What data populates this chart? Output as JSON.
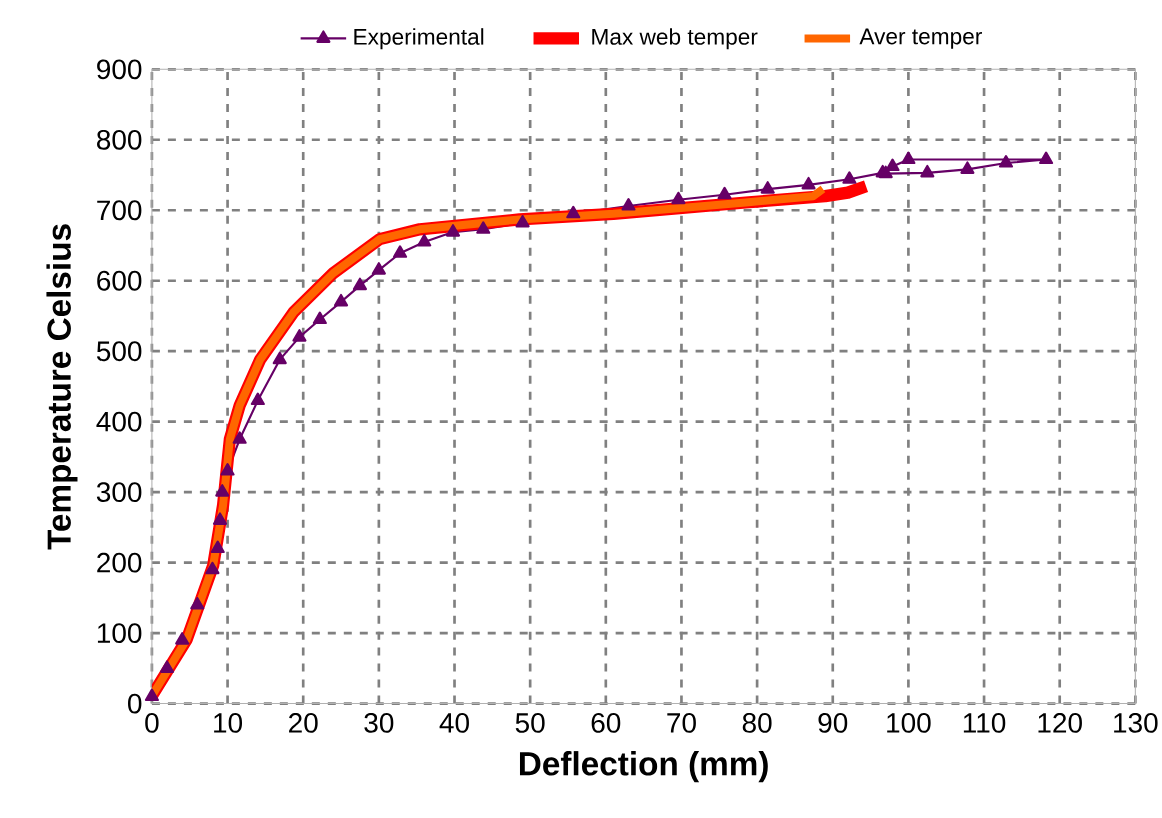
{
  "chart_data": {
    "type": "line",
    "xlabel": "Deflection (mm)",
    "ylabel": "Temperature Celsius",
    "xlim": [
      0,
      130
    ],
    "xticks": [
      0,
      10,
      20,
      30,
      40,
      50,
      60,
      70,
      80,
      90,
      100,
      110,
      120,
      130
    ],
    "ylim": [
      0,
      900
    ],
    "yticks": [
      0,
      100,
      200,
      300,
      400,
      500,
      600,
      700,
      800,
      900
    ],
    "grid": true,
    "legend": "top",
    "series": [
      {
        "name": "Experimental",
        "color": "#660066",
        "marker": "triangle",
        "x": [
          0,
          2,
          4,
          6,
          8,
          8.7,
          9,
          9.3,
          10,
          11.6,
          14,
          16.9,
          19.5,
          22.2,
          25,
          27.5,
          30,
          32.8,
          36,
          39.8,
          43.8,
          49,
          55.7,
          63,
          69.6,
          75.7,
          81.4,
          86.8,
          92.2,
          96.6,
          97.9,
          100,
          118.2,
          112.9,
          107.8,
          102.5,
          97
        ],
        "values": [
          10,
          50,
          90,
          140,
          190,
          220,
          260,
          300,
          330,
          375,
          430,
          488,
          520,
          545,
          570,
          593,
          615,
          639,
          655,
          669,
          673,
          682,
          695,
          706,
          715,
          722,
          730,
          736,
          744,
          753,
          762,
          772,
          772,
          767,
          758,
          753,
          752
        ]
      },
      {
        "name": "Max web temper",
        "color": "#ff0000",
        "x": [
          0,
          4.6,
          8.1,
          9.4,
          10.3,
          11.6,
          14.3,
          18.7,
          24,
          30.1,
          35.4,
          48.6,
          61,
          78.5,
          89,
          92,
          94.4
        ],
        "values": [
          11,
          91,
          196,
          281,
          375,
          423,
          488,
          555,
          611,
          659,
          673,
          687,
          695,
          711,
          720,
          725,
          734
        ]
      },
      {
        "name": "Aver temper",
        "color": "#ff6600",
        "x": [
          0,
          4.6,
          8.1,
          9.4,
          10.3,
          11.6,
          14.3,
          18.7,
          24,
          30.1,
          35.4,
          48.6,
          61,
          78.5,
          87.4,
          88.7
        ],
        "values": [
          11,
          91,
          196,
          281,
          375,
          423,
          488,
          555,
          611,
          659,
          673,
          687,
          695,
          711,
          720,
          730
        ]
      }
    ]
  }
}
